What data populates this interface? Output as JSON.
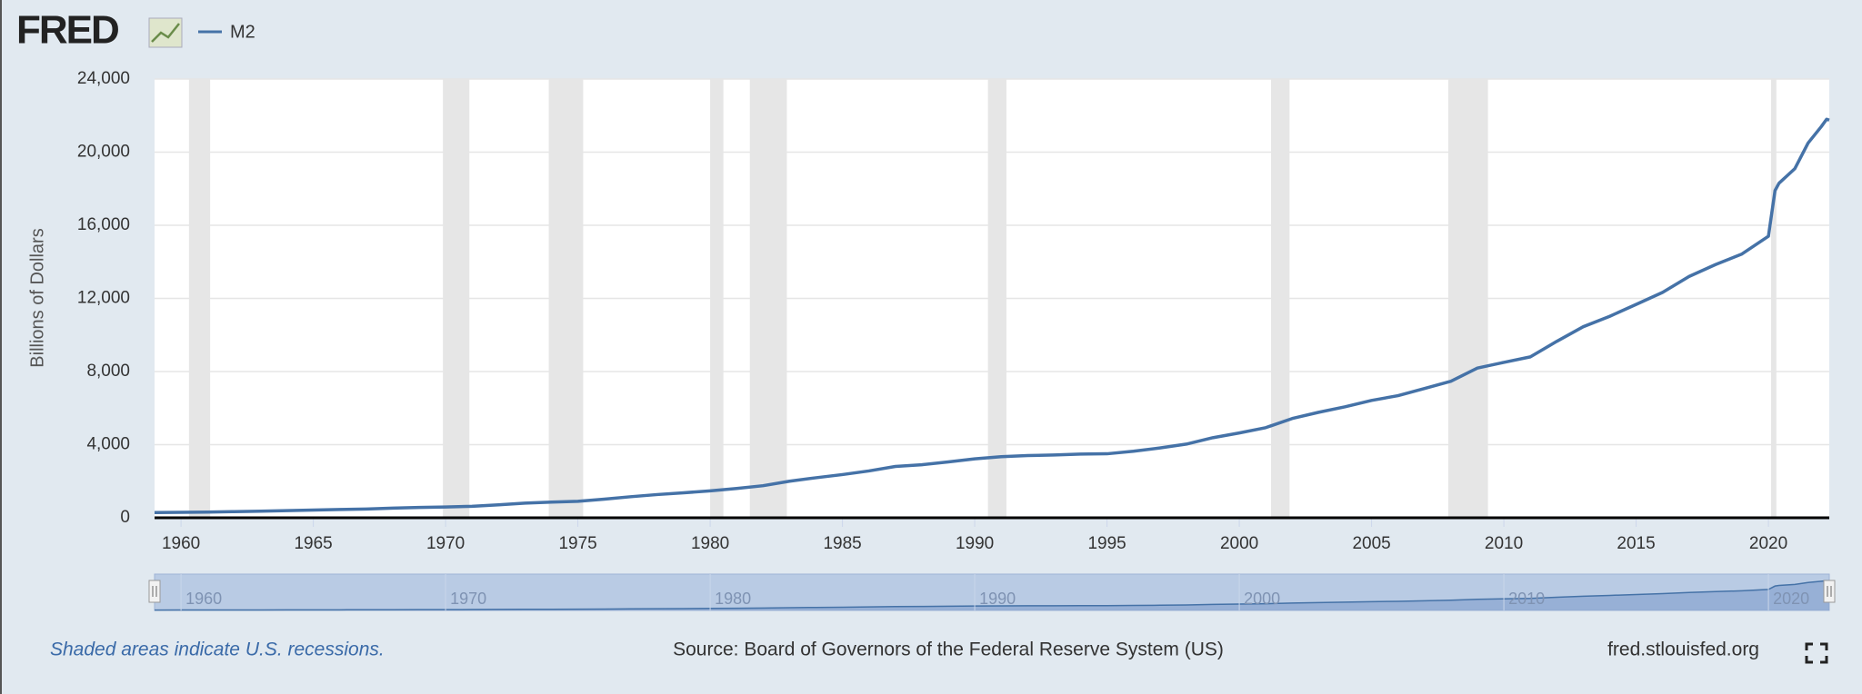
{
  "chart_data": {
    "type": "line",
    "logo": "FRED",
    "ylabel": "Billions of Dollars",
    "note": "Shaded areas indicate U.S. recessions.",
    "source": "Source: Board of Governors of the Federal Reserve System (US)",
    "site": "fred.stlouisfed.org",
    "xlim": [
      1959,
      2022.3
    ],
    "xticks": [
      1960,
      1965,
      1970,
      1975,
      1980,
      1985,
      1990,
      1995,
      2000,
      2005,
      2010,
      2015,
      2020
    ],
    "navigator_xticks": [
      1960,
      1970,
      1980,
      1990,
      2000,
      2010,
      2020
    ],
    "ylim": [
      0,
      24000
    ],
    "yticks": [
      0,
      {
        "value": 4000,
        "label": "4,000"
      },
      {
        "value": 8000,
        "label": "8,000"
      },
      {
        "value": 12000,
        "label": "12,000"
      },
      {
        "value": 16000,
        "label": "16,000"
      },
      {
        "value": 20000,
        "label": "20,000"
      },
      {
        "value": 24000,
        "label": "24,000"
      }
    ],
    "grid": true,
    "recessions": [
      [
        1960.3,
        1961.1
      ],
      [
        1969.9,
        1970.9
      ],
      [
        1973.9,
        1975.2
      ],
      [
        1980.0,
        1980.5
      ],
      [
        1981.5,
        1982.9
      ],
      [
        1990.5,
        1991.2
      ],
      [
        2001.2,
        2001.9
      ],
      [
        2007.9,
        2009.4
      ],
      [
        2020.1,
        2020.3
      ]
    ],
    "x": [
      1959,
      1960,
      1961,
      1962,
      1963,
      1964,
      1965,
      1966,
      1967,
      1968,
      1969,
      1970,
      1971,
      1972,
      1973,
      1974,
      1975,
      1976,
      1977,
      1978,
      1979,
      1980,
      1981,
      1982,
      1983,
      1984,
      1985,
      1986,
      1987,
      1988,
      1989,
      1990,
      1991,
      1992,
      1993,
      1994,
      1995,
      1996,
      1997,
      1998,
      1999,
      2000,
      2001,
      2002,
      2003,
      2004,
      2005,
      2006,
      2007,
      2008,
      2009,
      2010,
      2011,
      2012,
      2013,
      2014,
      2015,
      2016,
      2017,
      2018,
      2019,
      2020,
      2020.25,
      2020.4,
      2021,
      2021.5,
      2022,
      2022.2,
      2022.3
    ],
    "series": [
      {
        "name": "M2",
        "color": "#4572a7",
        "values": [
          287,
          300,
          312,
          335,
          363,
          393,
          425,
          453,
          481,
          525,
          566,
          590,
          626,
          710,
          802,
          855,
          902,
          1016,
          1152,
          1270,
          1366,
          1474,
          1600,
          1755,
          2000,
          2190,
          2363,
          2562,
          2807,
          2901,
          3055,
          3223,
          3342,
          3404,
          3436,
          3487,
          3500,
          3640,
          3820,
          4030,
          4380,
          4640,
          4930,
          5430,
          5770,
          6070,
          6420,
          6680,
          7070,
          7470,
          8190,
          8500,
          8800,
          9650,
          10450,
          11020,
          11670,
          12330,
          13200,
          13850,
          14430,
          15400,
          17900,
          18300,
          19100,
          20500,
          21400,
          21800,
          21750
        ]
      }
    ]
  }
}
